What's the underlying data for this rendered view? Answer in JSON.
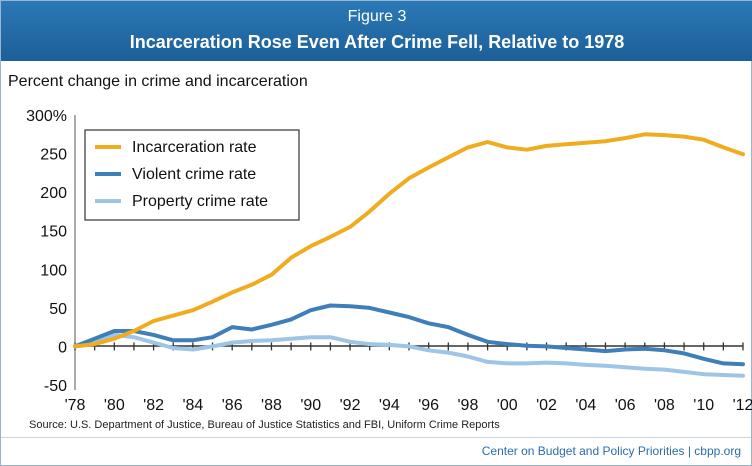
{
  "header": {
    "figure_number": "Figure 3",
    "title": "Incarceration Rose Even After Crime Fell, Relative to 1978"
  },
  "footer": {
    "source": "Source: U.S. Department of Justice, Bureau of Justice Statistics and FBI, Uniform Crime Reports",
    "credit": "Center on Budget and Policy Priorities | cbpp.org"
  },
  "chart_data": {
    "type": "line",
    "title": "Incarceration Rose Even After Crime Fell, Relative to 1978",
    "ylabel": "Percent change in crime and incarceration",
    "xlabel": "",
    "x": [
      1978,
      1979,
      1980,
      1981,
      1982,
      1983,
      1984,
      1985,
      1986,
      1987,
      1988,
      1989,
      1990,
      1991,
      1992,
      1993,
      1994,
      1995,
      1996,
      1997,
      1998,
      1999,
      2000,
      2001,
      2002,
      2003,
      2004,
      2005,
      2006,
      2007,
      2008,
      2009,
      2010,
      2011,
      2012
    ],
    "x_tick_labels": [
      "'78",
      "'80",
      "'82",
      "'84",
      "'86",
      "'88",
      "'90",
      "'92",
      "'94",
      "'96",
      "'98",
      "'00",
      "'02",
      "'04",
      "'06",
      "'08",
      "'10",
      "'12"
    ],
    "y_tick_labels": [
      "300%",
      "250",
      "200",
      "150",
      "100",
      "50",
      "0",
      "-50"
    ],
    "ylim": [
      -50,
      300
    ],
    "xlim": [
      1978,
      2012
    ],
    "grid": false,
    "legend_position": "top-left",
    "series": [
      {
        "name": "Incarceration rate",
        "color": "#f0ac1e",
        "values": [
          0,
          3,
          10,
          20,
          33,
          40,
          47,
          58,
          70,
          80,
          93,
          115,
          130,
          142,
          155,
          175,
          198,
          218,
          232,
          245,
          258,
          265,
          258,
          255,
          260,
          262,
          264,
          266,
          270,
          275,
          274,
          272,
          268,
          258,
          249
        ]
      },
      {
        "name": "Violent crime rate",
        "color": "#3f7fb9",
        "values": [
          0,
          10,
          20,
          20,
          15,
          8,
          8,
          12,
          25,
          22,
          28,
          35,
          47,
          53,
          52,
          50,
          44,
          38,
          30,
          25,
          15,
          6,
          3,
          1,
          0,
          -2,
          -4,
          -6,
          -4,
          -3,
          -5,
          -9,
          -16,
          -22,
          -23
        ]
      },
      {
        "name": "Property crime rate",
        "color": "#9ec4e6",
        "values": [
          0,
          5,
          15,
          12,
          5,
          -2,
          -4,
          0,
          5,
          7,
          8,
          10,
          12,
          12,
          6,
          3,
          2,
          0,
          -5,
          -8,
          -13,
          -20,
          -22,
          -22,
          -21,
          -22,
          -24,
          -25,
          -27,
          -29,
          -30,
          -33,
          -36,
          -37,
          -38
        ]
      }
    ]
  }
}
